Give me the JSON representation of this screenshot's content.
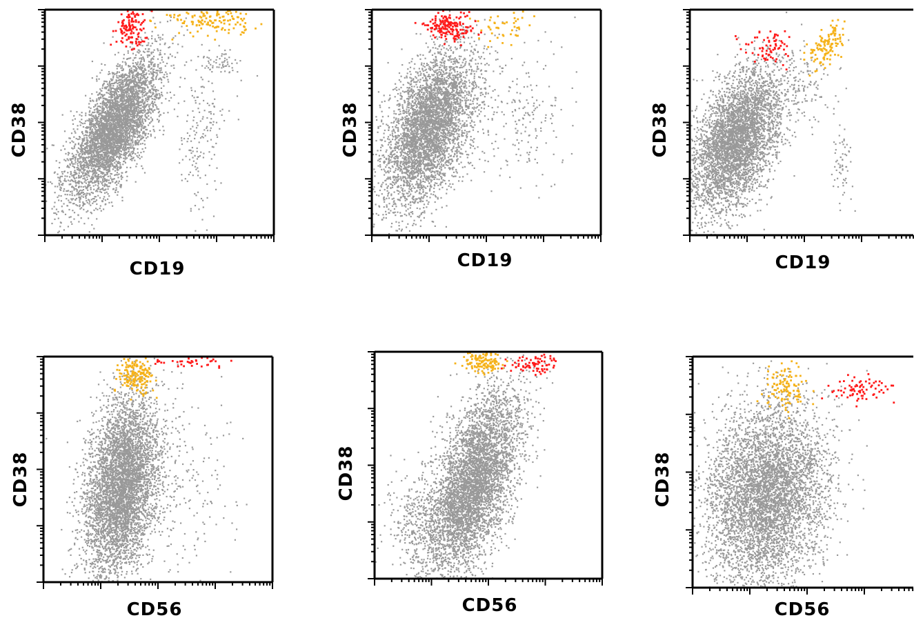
{
  "colors": {
    "background": "#ffffff",
    "events_bulk": "#999999",
    "population_red": "#ff1a1a",
    "population_orange": "#f5b21a",
    "axis": "#000000"
  },
  "chart_data": [
    {
      "type": "scatter",
      "panel": "top-left",
      "xlabel": "CD19",
      "ylabel": "CD38",
      "scale": "log",
      "grid": false,
      "series": [
        {
          "color": "#999999",
          "clusters": [
            {
              "cx": 0.3,
              "cy": 0.48,
              "sx": 0.1,
              "sy": 0.16,
              "rho": 0.7,
              "n": 4500
            },
            {
              "cx": 0.68,
              "cy": 0.45,
              "sx": 0.05,
              "sy": 0.18,
              "rho": 0,
              "n": 170
            },
            {
              "cx": 0.76,
              "cy": 0.76,
              "sx": 0.05,
              "sy": 0.03,
              "rho": 0,
              "n": 60
            }
          ]
        },
        {
          "color": "#ff1a1a",
          "clusters": [
            {
              "cx": 0.37,
              "cy": 0.92,
              "sx": 0.035,
              "sy": 0.04,
              "rho": 0,
              "n": 120
            }
          ]
        },
        {
          "color": "#f5b21a",
          "clusters": [
            {
              "cx": 0.72,
              "cy": 0.96,
              "sx": 0.09,
              "sy": 0.03,
              "rho": 0,
              "n": 140
            }
          ]
        }
      ]
    },
    {
      "type": "scatter",
      "panel": "top-middle",
      "xlabel": "CD19",
      "ylabel": "CD38",
      "scale": "log",
      "grid": false,
      "series": [
        {
          "color": "#999999",
          "clusters": [
            {
              "cx": 0.25,
              "cy": 0.48,
              "sx": 0.1,
              "sy": 0.17,
              "rho": 0.5,
              "n": 4300
            },
            {
              "cx": 0.65,
              "cy": 0.52,
              "sx": 0.1,
              "sy": 0.15,
              "rho": 0,
              "n": 190
            }
          ]
        },
        {
          "color": "#ff1a1a",
          "clusters": [
            {
              "cx": 0.33,
              "cy": 0.93,
              "sx": 0.05,
              "sy": 0.03,
              "rho": 0,
              "n": 170
            }
          ]
        },
        {
          "color": "#f5b21a",
          "clusters": [
            {
              "cx": 0.58,
              "cy": 0.92,
              "sx": 0.08,
              "sy": 0.04,
              "rho": 0,
              "n": 45
            }
          ]
        }
      ]
    },
    {
      "type": "scatter",
      "panel": "top-right",
      "xlabel": "CD19",
      "ylabel": "CD38",
      "scale": "log",
      "grid": false,
      "series": [
        {
          "color": "#999999",
          "clusters": [
            {
              "cx": 0.2,
              "cy": 0.42,
              "sx": 0.1,
              "sy": 0.16,
              "rho": 0.5,
              "n": 4200
            },
            {
              "cx": 0.66,
              "cy": 0.3,
              "sx": 0.02,
              "sy": 0.1,
              "rho": 0,
              "n": 60
            },
            {
              "cx": 0.5,
              "cy": 0.65,
              "sx": 0.06,
              "sy": 0.08,
              "rho": 0,
              "n": 100
            }
          ]
        },
        {
          "color": "#ff1a1a",
          "clusters": [
            {
              "cx": 0.35,
              "cy": 0.84,
              "sx": 0.06,
              "sy": 0.04,
              "rho": 0,
              "n": 70
            }
          ]
        },
        {
          "color": "#f5b21a",
          "clusters": [
            {
              "cx": 0.59,
              "cy": 0.84,
              "sx": 0.04,
              "sy": 0.05,
              "rho": 0.6,
              "n": 120
            }
          ]
        }
      ]
    },
    {
      "type": "scatter",
      "panel": "bottom-left",
      "xlabel": "CD56",
      "ylabel": "CD38",
      "scale": "log",
      "grid": false,
      "series": [
        {
          "color": "#999999",
          "clusters": [
            {
              "cx": 0.34,
              "cy": 0.43,
              "sx": 0.08,
              "sy": 0.2,
              "rho": 0.3,
              "n": 4800
            },
            {
              "cx": 0.6,
              "cy": 0.45,
              "sx": 0.12,
              "sy": 0.2,
              "rho": 0,
              "n": 200
            }
          ]
        },
        {
          "color": "#f5b21a",
          "clusters": [
            {
              "cx": 0.4,
              "cy": 0.92,
              "sx": 0.04,
              "sy": 0.04,
              "rho": 0,
              "n": 170
            }
          ]
        },
        {
          "color": "#ff1a1a",
          "clusters": [
            {
              "cx": 0.63,
              "cy": 0.98,
              "sx": 0.09,
              "sy": 0.015,
              "rho": 0,
              "n": 40
            }
          ]
        }
      ]
    },
    {
      "type": "scatter",
      "panel": "bottom-middle",
      "xlabel": "CD56",
      "ylabel": "CD38",
      "scale": "log",
      "grid": false,
      "series": [
        {
          "color": "#999999",
          "clusters": [
            {
              "cx": 0.43,
              "cy": 0.42,
              "sx": 0.1,
              "sy": 0.2,
              "rho": 0.55,
              "n": 4700
            },
            {
              "cx": 0.2,
              "cy": 0.25,
              "sx": 0.08,
              "sy": 0.1,
              "rho": 0,
              "n": 350
            }
          ]
        },
        {
          "color": "#f5b21a",
          "clusters": [
            {
              "cx": 0.47,
              "cy": 0.96,
              "sx": 0.04,
              "sy": 0.025,
              "rho": 0,
              "n": 130
            }
          ]
        },
        {
          "color": "#ff1a1a",
          "clusters": [
            {
              "cx": 0.7,
              "cy": 0.95,
              "sx": 0.06,
              "sy": 0.025,
              "rho": 0,
              "n": 80
            }
          ]
        }
      ]
    },
    {
      "type": "scatter",
      "panel": "bottom-right",
      "xlabel": "CD56",
      "ylabel": "CD38",
      "scale": "log",
      "grid": false,
      "series": [
        {
          "color": "#999999",
          "clusters": [
            {
              "cx": 0.32,
              "cy": 0.4,
              "sx": 0.13,
              "sy": 0.2,
              "rho": 0.15,
              "n": 5000
            }
          ]
        },
        {
          "color": "#f5b21a",
          "clusters": [
            {
              "cx": 0.41,
              "cy": 0.87,
              "sx": 0.05,
              "sy": 0.05,
              "rho": 0,
              "n": 110
            }
          ]
        },
        {
          "color": "#ff1a1a",
          "clusters": [
            {
              "cx": 0.72,
              "cy": 0.86,
              "sx": 0.07,
              "sy": 0.03,
              "rho": 0,
              "n": 75
            }
          ]
        }
      ]
    }
  ]
}
